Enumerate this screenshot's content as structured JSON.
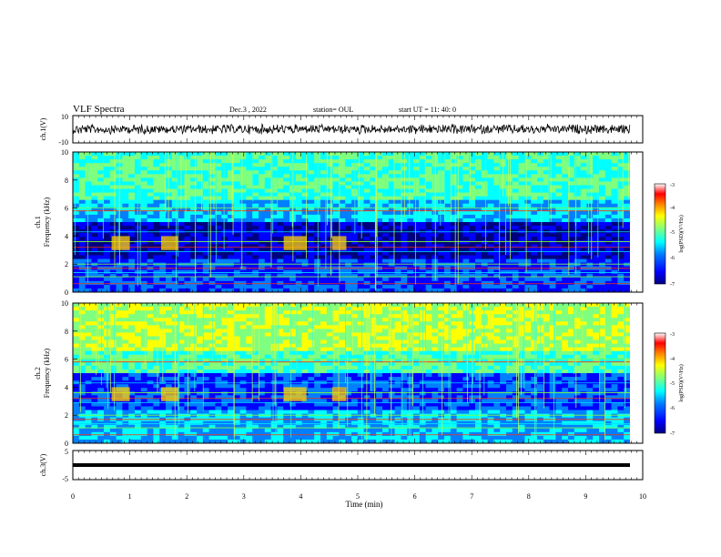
{
  "header": {
    "title": "VLF Spectra",
    "date": "Dec.3  , 2022",
    "station": "station= OUL",
    "start": "start  UT =    11: 40: 0"
  },
  "chart_data": [
    {
      "type": "line",
      "panel": "ch1-waveform",
      "ylabel": "ch.1(V)",
      "ylim": [
        -10,
        10
      ],
      "yticks": [
        "10",
        "-10"
      ],
      "xlim": [
        0,
        10
      ],
      "description_values": {
        "signal_center": 0,
        "approx_amplitude": 1
      }
    },
    {
      "type": "heatmap",
      "panel": "ch1-spectrogram",
      "ylabel": "ch.1\nFrequency  (kHz)",
      "ylim": [
        0,
        10
      ],
      "yticks": [
        "0",
        "2",
        "4",
        "6",
        "8",
        "10"
      ],
      "xlim": [
        0,
        10
      ],
      "colorbar": {
        "label": "log(PSD)(V²/Hz)",
        "range": [
          -7,
          -3
        ],
        "ticks": [
          "-3",
          "-4",
          "-5",
          "-6",
          "-7"
        ]
      }
    },
    {
      "type": "heatmap",
      "panel": "ch2-spectrogram",
      "ylabel": "ch.2\nFrequency  (kHz)",
      "ylim": [
        0,
        10
      ],
      "yticks": [
        "0",
        "2",
        "4",
        "6",
        "8",
        "10"
      ],
      "xlim": [
        0,
        10
      ],
      "colorbar": {
        "label": "log(PSD)(V²/Hz)",
        "range": [
          -7,
          -3
        ],
        "ticks": [
          "-3",
          "-4",
          "-5",
          "-6",
          "-7"
        ]
      }
    },
    {
      "type": "line",
      "panel": "ch3-waveform",
      "ylabel": "ch.3(V)",
      "ylim": [
        -5,
        5
      ],
      "yticks": [
        "5",
        "0",
        "-5"
      ],
      "xlim": [
        0,
        10
      ],
      "description_values": {
        "signal_level": 0
      }
    }
  ],
  "xaxis": {
    "label": "Time  (min)",
    "ticks": [
      "0",
      "1",
      "2",
      "3",
      "4",
      "5",
      "6",
      "7",
      "8",
      "9",
      "10"
    ]
  },
  "colors": {
    "palette": [
      "#00007f",
      "#0000ff",
      "#007fff",
      "#00ffff",
      "#7fff7f",
      "#ffff00",
      "#ff7f00",
      "#ff0000",
      "#7f0000"
    ]
  }
}
